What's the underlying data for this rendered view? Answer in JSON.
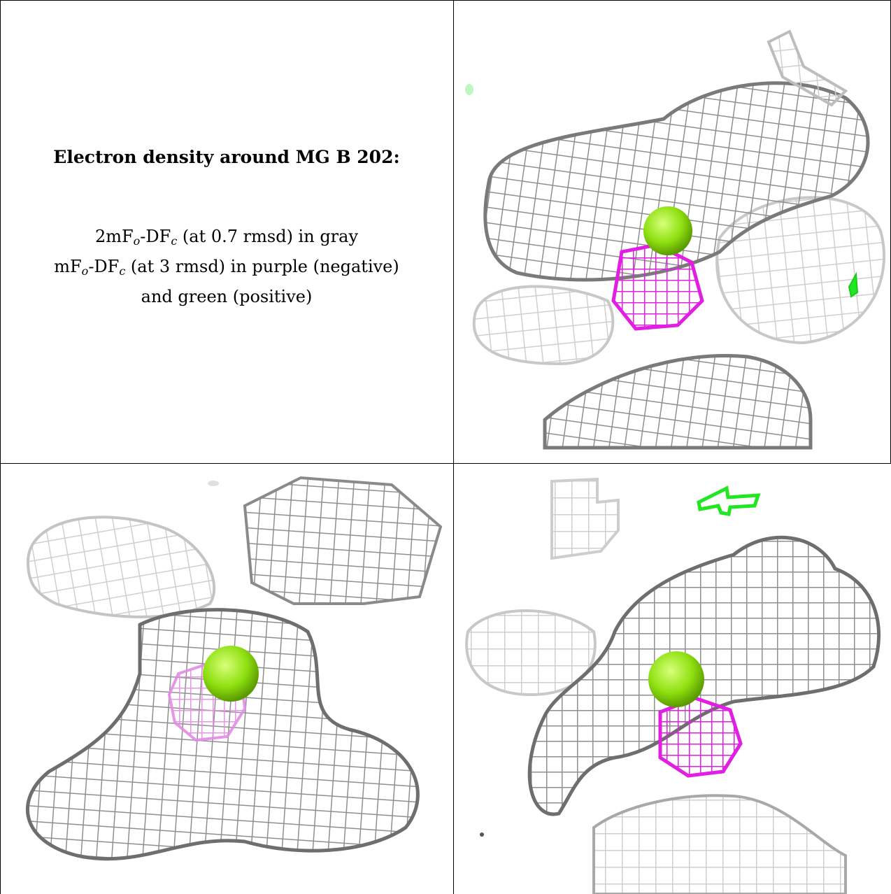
{
  "caption": {
    "title": "Electron density around MG B 202:",
    "line1": {
      "a": "2mF",
      "sub1": "o",
      "b": "-DF",
      "sub2": "c",
      "c": " (at 0.7 rmsd) in gray"
    },
    "line2": {
      "a": "mF",
      "sub1": "o",
      "b": "-DF",
      "sub2": "c",
      "c": " (at 3 rmsd) in purple (negative)"
    },
    "line3": "and green (positive)"
  },
  "colors": {
    "density_2fofc": "#9a9a9a",
    "density_2fofc_dark": "#6e6e6e",
    "difference_negative": "#e11ee1",
    "difference_positive": "#22e622",
    "mg_ion": "#8ee010"
  },
  "panels": [
    {
      "id": "view-1",
      "shows": [
        "gray mesh",
        "purple mesh",
        "green blob",
        "mg sphere"
      ]
    },
    {
      "id": "view-2",
      "shows": [
        "gray mesh",
        "purple mesh",
        "mg sphere"
      ]
    },
    {
      "id": "view-3",
      "shows": [
        "gray mesh",
        "purple mesh",
        "green mesh",
        "mg sphere"
      ]
    }
  ]
}
